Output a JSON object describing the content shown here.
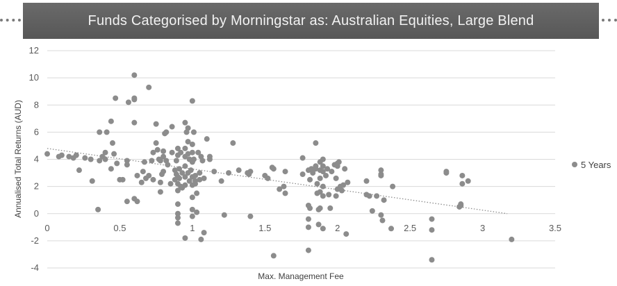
{
  "chart_data": {
    "type": "scatter",
    "title": "Funds Categorised by Morningstar as: Australian Equities, Large Blend",
    "xlabel": "Max. Management Fee",
    "ylabel": "Annualised Total Returns (AUD)",
    "xlim": [
      0,
      3.5
    ],
    "ylim": [
      -4,
      12
    ],
    "xticks": [
      "0",
      "0.5",
      "1",
      "1.5",
      "2",
      "2.5",
      "3",
      "3.5"
    ],
    "yticks": [
      "-4",
      "-2",
      "0",
      "2",
      "4",
      "6",
      "8",
      "10",
      "12"
    ],
    "grid": "horizontal",
    "legend_position": "right",
    "trendline": {
      "type": "linear",
      "style": "dotted",
      "x": [
        0,
        3.17
      ],
      "y": [
        4.8,
        0.0
      ]
    },
    "colors": {
      "marker": "#8c8c8c",
      "trend": "#8c8c8c",
      "title_bg": "#5e5e5e"
    },
    "series": [
      {
        "name": "5 Years",
        "points": [
          [
            0.0,
            4.4
          ],
          [
            0.08,
            4.2
          ],
          [
            0.1,
            4.3
          ],
          [
            0.15,
            4.2
          ],
          [
            0.18,
            4.1
          ],
          [
            0.2,
            4.3
          ],
          [
            0.22,
            3.2
          ],
          [
            0.26,
            4.1
          ],
          [
            0.3,
            4.0
          ],
          [
            0.31,
            2.4
          ],
          [
            0.35,
            0.3
          ],
          [
            0.36,
            6.0
          ],
          [
            0.36,
            3.9
          ],
          [
            0.38,
            4.2
          ],
          [
            0.4,
            4.0
          ],
          [
            0.4,
            4.5
          ],
          [
            0.41,
            6.0
          ],
          [
            0.44,
            3.3
          ],
          [
            0.44,
            6.8
          ],
          [
            0.45,
            5.2
          ],
          [
            0.46,
            4.4
          ],
          [
            0.47,
            8.5
          ],
          [
            0.48,
            3.7
          ],
          [
            0.5,
            2.5
          ],
          [
            0.52,
            2.5
          ],
          [
            0.55,
            3.6
          ],
          [
            0.55,
            3.9
          ],
          [
            0.55,
            0.9
          ],
          [
            0.56,
            8.2
          ],
          [
            0.6,
            10.2
          ],
          [
            0.6,
            8.4
          ],
          [
            0.6,
            8.5
          ],
          [
            0.6,
            6.7
          ],
          [
            0.6,
            1.1
          ],
          [
            0.62,
            0.9
          ],
          [
            0.62,
            2.8
          ],
          [
            0.65,
            2.3
          ],
          [
            0.66,
            3.1
          ],
          [
            0.67,
            3.8
          ],
          [
            0.68,
            2.6
          ],
          [
            0.7,
            9.3
          ],
          [
            0.7,
            2.8
          ],
          [
            0.72,
            3.9
          ],
          [
            0.73,
            4.5
          ],
          [
            0.73,
            2.5
          ],
          [
            0.75,
            6.6
          ],
          [
            0.75,
            5.2
          ],
          [
            0.76,
            4.7
          ],
          [
            0.77,
            4.0
          ],
          [
            0.78,
            3.9
          ],
          [
            0.78,
            2.3
          ],
          [
            0.78,
            1.6
          ],
          [
            0.79,
            2.9
          ],
          [
            0.8,
            4.6
          ],
          [
            0.8,
            4.2
          ],
          [
            0.8,
            3.1
          ],
          [
            0.81,
            5.9
          ],
          [
            0.82,
            6.0
          ],
          [
            0.82,
            3.9
          ],
          [
            0.83,
            3.6
          ],
          [
            0.85,
            2.2
          ],
          [
            0.86,
            6.4
          ],
          [
            0.86,
            4.5
          ],
          [
            0.88,
            3.2
          ],
          [
            0.88,
            2.5
          ],
          [
            0.89,
            3.9
          ],
          [
            0.89,
            2.9
          ],
          [
            0.9,
            4.8
          ],
          [
            0.9,
            4.3
          ],
          [
            0.9,
            2.7
          ],
          [
            0.9,
            2.2
          ],
          [
            0.9,
            1.7
          ],
          [
            0.9,
            0.7
          ],
          [
            0.9,
            0.0
          ],
          [
            0.9,
            -0.3
          ],
          [
            0.9,
            -0.7
          ],
          [
            0.91,
            3.3
          ],
          [
            0.91,
            2.6
          ],
          [
            0.92,
            2.0
          ],
          [
            0.92,
            4.5
          ],
          [
            0.93,
            3.0
          ],
          [
            0.93,
            1.9
          ],
          [
            0.95,
            6.7
          ],
          [
            0.95,
            4.8
          ],
          [
            0.95,
            4.2
          ],
          [
            0.95,
            3.5
          ],
          [
            0.95,
            2.7
          ],
          [
            0.95,
            2.1
          ],
          [
            0.95,
            -1.8
          ],
          [
            0.96,
            6.0
          ],
          [
            0.97,
            6.3
          ],
          [
            0.97,
            5.3
          ],
          [
            0.97,
            4.4
          ],
          [
            0.97,
            3.0
          ],
          [
            0.98,
            2.4
          ],
          [
            0.98,
            4.0
          ],
          [
            0.99,
            3.2
          ],
          [
            1.0,
            8.3
          ],
          [
            1.0,
            5.1
          ],
          [
            1.0,
            4.5
          ],
          [
            1.0,
            3.8
          ],
          [
            1.0,
            2.7
          ],
          [
            1.0,
            2.1
          ],
          [
            1.0,
            1.2
          ],
          [
            1.0,
            0.3
          ],
          [
            1.0,
            -0.2
          ],
          [
            1.01,
            6.0
          ],
          [
            1.01,
            4.0
          ],
          [
            1.02,
            2.8
          ],
          [
            1.02,
            2.4
          ],
          [
            1.02,
            2.2
          ],
          [
            1.03,
            1.5
          ],
          [
            1.03,
            0.1
          ],
          [
            1.04,
            4.5
          ],
          [
            1.05,
            3.0
          ],
          [
            1.05,
            2.5
          ],
          [
            1.06,
            4.2
          ],
          [
            1.06,
            -1.9
          ],
          [
            1.07,
            3.9
          ],
          [
            1.08,
            2.6
          ],
          [
            1.08,
            -1.4
          ],
          [
            1.1,
            5.5
          ],
          [
            1.12,
            4.2
          ],
          [
            1.12,
            4.0
          ],
          [
            1.15,
            3.1
          ],
          [
            1.2,
            2.4
          ],
          [
            1.22,
            -0.1
          ],
          [
            1.25,
            3.0
          ],
          [
            1.28,
            5.2
          ],
          [
            1.32,
            3.2
          ],
          [
            1.38,
            3.0
          ],
          [
            1.39,
            2.9
          ],
          [
            1.4,
            -0.2
          ],
          [
            1.4,
            3.1
          ],
          [
            1.5,
            2.8
          ],
          [
            1.52,
            2.6
          ],
          [
            1.55,
            3.4
          ],
          [
            1.56,
            3.3
          ],
          [
            1.56,
            -3.1
          ],
          [
            1.6,
            1.8
          ],
          [
            1.63,
            2.0
          ],
          [
            1.64,
            1.5
          ],
          [
            1.64,
            3.1
          ],
          [
            1.76,
            4.1
          ],
          [
            1.76,
            2.9
          ],
          [
            1.8,
            3.2
          ],
          [
            1.8,
            -0.4
          ],
          [
            1.8,
            0.6
          ],
          [
            1.8,
            -1.0
          ],
          [
            1.8,
            -2.7
          ],
          [
            1.81,
            0.4
          ],
          [
            1.81,
            2.5
          ],
          [
            1.82,
            3.3
          ],
          [
            1.83,
            3.0
          ],
          [
            1.85,
            3.5
          ],
          [
            1.85,
            3.3
          ],
          [
            1.85,
            5.2
          ],
          [
            1.86,
            2.2
          ],
          [
            1.86,
            1.5
          ],
          [
            1.87,
            0.3
          ],
          [
            1.87,
            -0.8
          ],
          [
            1.88,
            3.2
          ],
          [
            1.88,
            3.8
          ],
          [
            1.88,
            2.6
          ],
          [
            1.88,
            1.6
          ],
          [
            1.88,
            0.4
          ],
          [
            1.9,
            4.0
          ],
          [
            1.9,
            3.5
          ],
          [
            1.9,
            3.1
          ],
          [
            1.9,
            2.0
          ],
          [
            1.9,
            1.3
          ],
          [
            1.9,
            -1.1
          ],
          [
            1.92,
            2.8
          ],
          [
            1.93,
            3.3
          ],
          [
            1.94,
            1.4
          ],
          [
            1.95,
            0.4
          ],
          [
            1.96,
            3.1
          ],
          [
            1.98,
            3.6
          ],
          [
            1.99,
            2.6
          ],
          [
            1.99,
            1.3
          ],
          [
            2.0,
            3.7
          ],
          [
            2.0,
            3.5
          ],
          [
            2.0,
            1.8
          ],
          [
            2.01,
            3.8
          ],
          [
            2.02,
            2.0
          ],
          [
            2.03,
            1.7
          ],
          [
            2.04,
            2.1
          ],
          [
            2.05,
            3.3
          ],
          [
            2.06,
            -1.5
          ],
          [
            2.07,
            2.3
          ],
          [
            2.2,
            2.4
          ],
          [
            2.2,
            1.4
          ],
          [
            2.22,
            1.3
          ],
          [
            2.24,
            0.2
          ],
          [
            2.27,
            1.3
          ],
          [
            2.3,
            3.2
          ],
          [
            2.3,
            2.9
          ],
          [
            2.3,
            2.8
          ],
          [
            2.3,
            -0.1
          ],
          [
            2.31,
            -0.5
          ],
          [
            2.32,
            1.0
          ],
          [
            2.37,
            -1.1
          ],
          [
            2.38,
            2.0
          ],
          [
            2.65,
            -0.4
          ],
          [
            2.65,
            -1.2
          ],
          [
            2.65,
            -3.4
          ],
          [
            2.75,
            3.1
          ],
          [
            2.75,
            3.0
          ],
          [
            2.84,
            0.5
          ],
          [
            2.85,
            0.6
          ],
          [
            2.85,
            0.7
          ],
          [
            2.86,
            2.8
          ],
          [
            2.86,
            2.2
          ],
          [
            2.9,
            2.4
          ],
          [
            3.2,
            -1.9
          ]
        ]
      }
    ]
  }
}
